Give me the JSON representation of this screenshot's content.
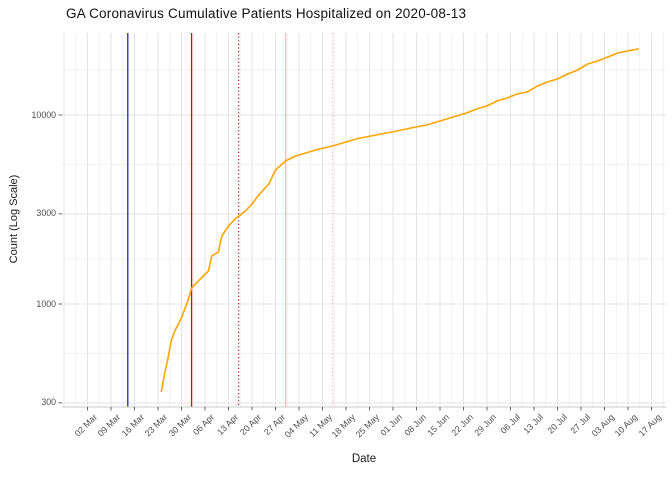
{
  "title": "GA Coronavirus Cumulative Patients Hospitalized on 2020-08-13",
  "axes": {
    "x_title": "Date",
    "y_title": "Count (Log Scale)",
    "x_tick_labels": [
      "02 Mar",
      "09 Mar",
      "16 Mar",
      "23 Mar",
      "30 Mar",
      "06 Apr",
      "13 Apr",
      "20 Apr",
      "27 Apr",
      "04 May",
      "11 May",
      "18 May",
      "25 May",
      "01 Jun",
      "08 Jun",
      "15 Jun",
      "22 Jun",
      "29 Jun",
      "06 Jul",
      "13 Jul",
      "20 Jul",
      "27 Jul",
      "03 Aug",
      "10 Aug",
      "17 Aug"
    ],
    "x_tick_start_date": "2020-03-02",
    "x_tick_interval_days": 7,
    "y_tick_labels": [
      "10000",
      "3000",
      "1000",
      "300"
    ],
    "y_tick_values": [
      10000,
      3000,
      1000,
      300
    ]
  },
  "colors": {
    "series_line": "#FFA500",
    "grid_major": "#E3E3E3",
    "grid_minor": "#F0F0F0",
    "axis_line": "#C8C8C8",
    "tick_mark": "#666666",
    "tick_text": "#4D4D4D",
    "title_text": "#111111"
  },
  "chart_data": {
    "type": "line",
    "title": "GA Coronavirus Cumulative Patients Hospitalized on 2020-08-13",
    "xlabel": "Date",
    "ylabel": "Count (Log Scale)",
    "y_scale": "log10",
    "ylim": [
      285,
      27000
    ],
    "x_range": [
      "2020-02-23",
      "2020-08-21"
    ],
    "grid": true,
    "legend": "none",
    "series": [
      {
        "name": "cumulative-hospitalized",
        "color": "#FFA500",
        "points": [
          [
            "2020-03-24",
            345
          ],
          [
            "2020-03-25",
            430
          ],
          [
            "2020-03-26",
            520
          ],
          [
            "2020-03-27",
            645
          ],
          [
            "2020-03-28",
            720
          ],
          [
            "2020-03-30",
            845
          ],
          [
            "2020-04-01",
            1050
          ],
          [
            "2020-04-02",
            1215
          ],
          [
            "2020-04-04",
            1325
          ],
          [
            "2020-04-07",
            1495
          ],
          [
            "2020-04-08",
            1795
          ],
          [
            "2020-04-10",
            1885
          ],
          [
            "2020-04-11",
            2290
          ],
          [
            "2020-04-13",
            2590
          ],
          [
            "2020-04-15",
            2820
          ],
          [
            "2020-04-18",
            3105
          ],
          [
            "2020-04-20",
            3380
          ],
          [
            "2020-04-22",
            3775
          ],
          [
            "2020-04-25",
            4315
          ],
          [
            "2020-04-27",
            5115
          ],
          [
            "2020-04-30",
            5715
          ],
          [
            "2020-05-03",
            6065
          ],
          [
            "2020-05-07",
            6375
          ],
          [
            "2020-05-10",
            6605
          ],
          [
            "2020-05-14",
            6855
          ],
          [
            "2020-05-17",
            7110
          ],
          [
            "2020-05-21",
            7465
          ],
          [
            "2020-05-24",
            7655
          ],
          [
            "2020-05-27",
            7835
          ],
          [
            "2020-05-30",
            8035
          ],
          [
            "2020-06-02",
            8220
          ],
          [
            "2020-06-05",
            8435
          ],
          [
            "2020-06-08",
            8650
          ],
          [
            "2020-06-11",
            8850
          ],
          [
            "2020-06-14",
            9185
          ],
          [
            "2020-06-17",
            9525
          ],
          [
            "2020-06-20",
            9885
          ],
          [
            "2020-06-23",
            10255
          ],
          [
            "2020-06-26",
            10765
          ],
          [
            "2020-06-29",
            11170
          ],
          [
            "2020-07-02",
            11860
          ],
          [
            "2020-07-05",
            12305
          ],
          [
            "2020-07-08",
            12910
          ],
          [
            "2020-07-11",
            13245
          ],
          [
            "2020-07-14",
            14225
          ],
          [
            "2020-07-17",
            14960
          ],
          [
            "2020-07-20",
            15500
          ],
          [
            "2020-07-23",
            16480
          ],
          [
            "2020-07-26",
            17300
          ],
          [
            "2020-07-29",
            18620
          ],
          [
            "2020-08-01",
            19320
          ],
          [
            "2020-08-04",
            20275
          ],
          [
            "2020-08-07",
            21280
          ],
          [
            "2020-08-10",
            21830
          ],
          [
            "2020-08-13",
            22350
          ]
        ]
      }
    ],
    "vlines": [
      {
        "name": "vline-blue-solid",
        "date": "2020-03-14",
        "color": "#2323CE",
        "style": "solid"
      },
      {
        "name": "vline-red-solid",
        "date": "2020-04-02",
        "color": "#E60000",
        "style": "solid"
      },
      {
        "name": "vline-darkred-dotted",
        "date": "2020-04-16",
        "color": "#B22222",
        "style": "dotted"
      },
      {
        "name": "vline-pink-solid",
        "date": "2020-04-30",
        "color": "#F8B8C6",
        "style": "solid"
      },
      {
        "name": "vline-pink-dotted",
        "date": "2020-05-14",
        "color": "#F4B8C8",
        "style": "dotted"
      }
    ]
  }
}
